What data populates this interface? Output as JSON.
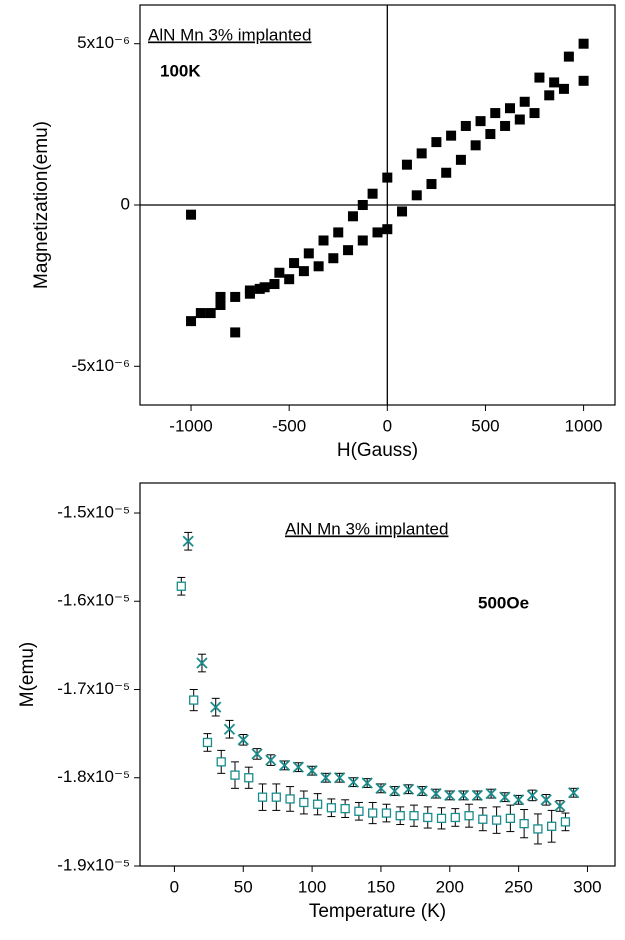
{
  "chart_data": [
    {
      "type": "scatter",
      "x_label": "H(Gauss)",
      "y_label": "Magnetization(emu)",
      "annotations": [
        "AlN Mn 3% implanted",
        "100K"
      ],
      "xlim": [
        -1260,
        1160
      ],
      "xticks": [
        -1000,
        -500,
        0,
        500,
        1000
      ],
      "ylim": [
        -6.2e-06,
        6.2e-06
      ],
      "yticks": [
        {
          "value": -5e-06,
          "label": "-5x10⁻⁶"
        },
        0,
        {
          "value": 5e-06,
          "label": "5x10⁻⁶"
        }
      ],
      "zero_lines": true,
      "series": [
        {
          "color": "#000000",
          "marker": "square",
          "x": [
            -1000,
            -950,
            -900,
            -850,
            -775,
            -700,
            -650,
            -575,
            -500,
            -425,
            -350,
            -275,
            -200,
            -125,
            -50,
            0,
            75,
            150,
            225,
            300,
            375,
            450,
            525,
            600,
            675,
            750,
            825,
            900,
            1000,
            1000,
            925,
            850,
            775,
            700,
            625,
            550,
            475,
            400,
            325,
            250,
            175,
            100,
            0,
            -75,
            -125,
            -175,
            -250,
            -325,
            -400,
            -475,
            -550,
            -625,
            -700,
            -775,
            -850,
            -1000
          ],
          "values": [
            -3.6e-06,
            -3.35e-06,
            -3.35e-06,
            -3.1e-06,
            -2.85e-06,
            -2.75e-06,
            -2.6e-06,
            -2.45e-06,
            -2.3e-06,
            -2.05e-06,
            -1.9e-06,
            -1.65e-06,
            -1.4e-06,
            -1.1e-06,
            -8.5e-07,
            -7.5e-07,
            -2e-07,
            3e-07,
            6.5e-07,
            1e-06,
            1.4e-06,
            1.85e-06,
            2.2e-06,
            2.45e-06,
            2.65e-06,
            2.85e-06,
            3.4e-06,
            3.6e-06,
            3.85e-06,
            5e-06,
            4.6e-06,
            3.8e-06,
            3.95e-06,
            3.2e-06,
            3e-06,
            2.85e-06,
            2.6e-06,
            2.45e-06,
            2.15e-06,
            1.95e-06,
            1.6e-06,
            1.25e-06,
            8.5e-07,
            3.5e-07,
            0,
            -3.5e-07,
            -8.5e-07,
            -1.1e-06,
            -1.5e-06,
            -1.8e-06,
            -2.1e-06,
            -2.55e-06,
            -2.65e-06,
            -3.95e-06,
            -2.85e-06,
            -3e-07
          ]
        }
      ]
    },
    {
      "type": "scatter",
      "x_label": "Temperature (K)",
      "y_label": "M(emu)",
      "annotations": [
        "AlN Mn 3% implanted",
        "500Oe"
      ],
      "xlim": [
        -25,
        320
      ],
      "xticks": [
        0,
        50,
        100,
        150,
        200,
        250,
        300
      ],
      "ylim": [
        -1.9e-05,
        -1.466e-05
      ],
      "yticks": [
        {
          "value": -1.9e-05,
          "label": "-1.9x10⁻⁵"
        },
        {
          "value": -1.8e-05,
          "label": "-1.8x10⁻⁵"
        },
        {
          "value": -1.7e-05,
          "label": "-1.7x10⁻⁵"
        },
        {
          "value": -1.6e-05,
          "label": "-1.6x10⁻⁵"
        },
        {
          "value": -1.5e-05,
          "label": "-1.5x10⁻⁵"
        }
      ],
      "zero_lines": false,
      "series": [
        {
          "color": "#1a8c8c",
          "marker": "open-square",
          "x": [
            5,
            14,
            24,
            34,
            44,
            54,
            64,
            74,
            84,
            94,
            104,
            114,
            124,
            134,
            144,
            154,
            164,
            174,
            184,
            194,
            204,
            214,
            224,
            234,
            244,
            254,
            264,
            274,
            284
          ],
          "values": [
            -1.583e-05,
            -1.712e-05,
            -1.76e-05,
            -1.782e-05,
            -1.797e-05,
            -1.8e-05,
            -1.822e-05,
            -1.822e-05,
            -1.824e-05,
            -1.828e-05,
            -1.83e-05,
            -1.834e-05,
            -1.835e-05,
            -1.838e-05,
            -1.84e-05,
            -1.84e-05,
            -1.843e-05,
            -1.843e-05,
            -1.845e-05,
            -1.846e-05,
            -1.845e-05,
            -1.843e-05,
            -1.847e-05,
            -1.848e-05,
            -1.846e-05,
            -1.852e-05,
            -1.858e-05,
            -1.855e-05,
            -1.85e-05
          ],
          "errors": [
            1e-07,
            1.2e-07,
            1e-07,
            1.3e-07,
            1.5e-07,
            1.2e-07,
            1.5e-07,
            1.5e-07,
            1.4e-07,
            1.3e-07,
            1.2e-07,
            1e-07,
            1e-07,
            1e-07,
            1.2e-07,
            1e-07,
            1e-07,
            1.2e-07,
            1.2e-07,
            1.2e-07,
            1e-07,
            1.3e-07,
            1.3e-07,
            1.5e-07,
            1.5e-07,
            1.6e-07,
            1.7e-07,
            1.8e-07,
            1e-07
          ]
        },
        {
          "color": "#1a8c8c",
          "marker": "x",
          "x": [
            10,
            20,
            30,
            40,
            50,
            60,
            70,
            80,
            90,
            100,
            110,
            120,
            130,
            140,
            150,
            160,
            170,
            180,
            190,
            200,
            210,
            220,
            230,
            240,
            250,
            260,
            270,
            280,
            290
          ],
          "values": [
            -1.532e-05,
            -1.67e-05,
            -1.72e-05,
            -1.745e-05,
            -1.757e-05,
            -1.773e-05,
            -1.78e-05,
            -1.786e-05,
            -1.788e-05,
            -1.792e-05,
            -1.8e-05,
            -1.8e-05,
            -1.805e-05,
            -1.806e-05,
            -1.812e-05,
            -1.815e-05,
            -1.813e-05,
            -1.815e-05,
            -1.818e-05,
            -1.82e-05,
            -1.82e-05,
            -1.82e-05,
            -1.818e-05,
            -1.822e-05,
            -1.825e-05,
            -1.82e-05,
            -1.825e-05,
            -1.832e-05,
            -1.817e-05
          ],
          "errors": [
            1e-07,
            1e-07,
            1e-07,
            1e-07,
            6e-08,
            6e-08,
            6e-08,
            5e-08,
            5e-08,
            5e-08,
            5e-08,
            5e-08,
            5e-08,
            5e-08,
            5e-08,
            5e-08,
            5e-08,
            5e-08,
            5e-08,
            5e-08,
            5e-08,
            5e-08,
            5e-08,
            5e-08,
            5e-08,
            6e-08,
            6e-08,
            6e-08,
            5e-08
          ]
        }
      ]
    }
  ]
}
